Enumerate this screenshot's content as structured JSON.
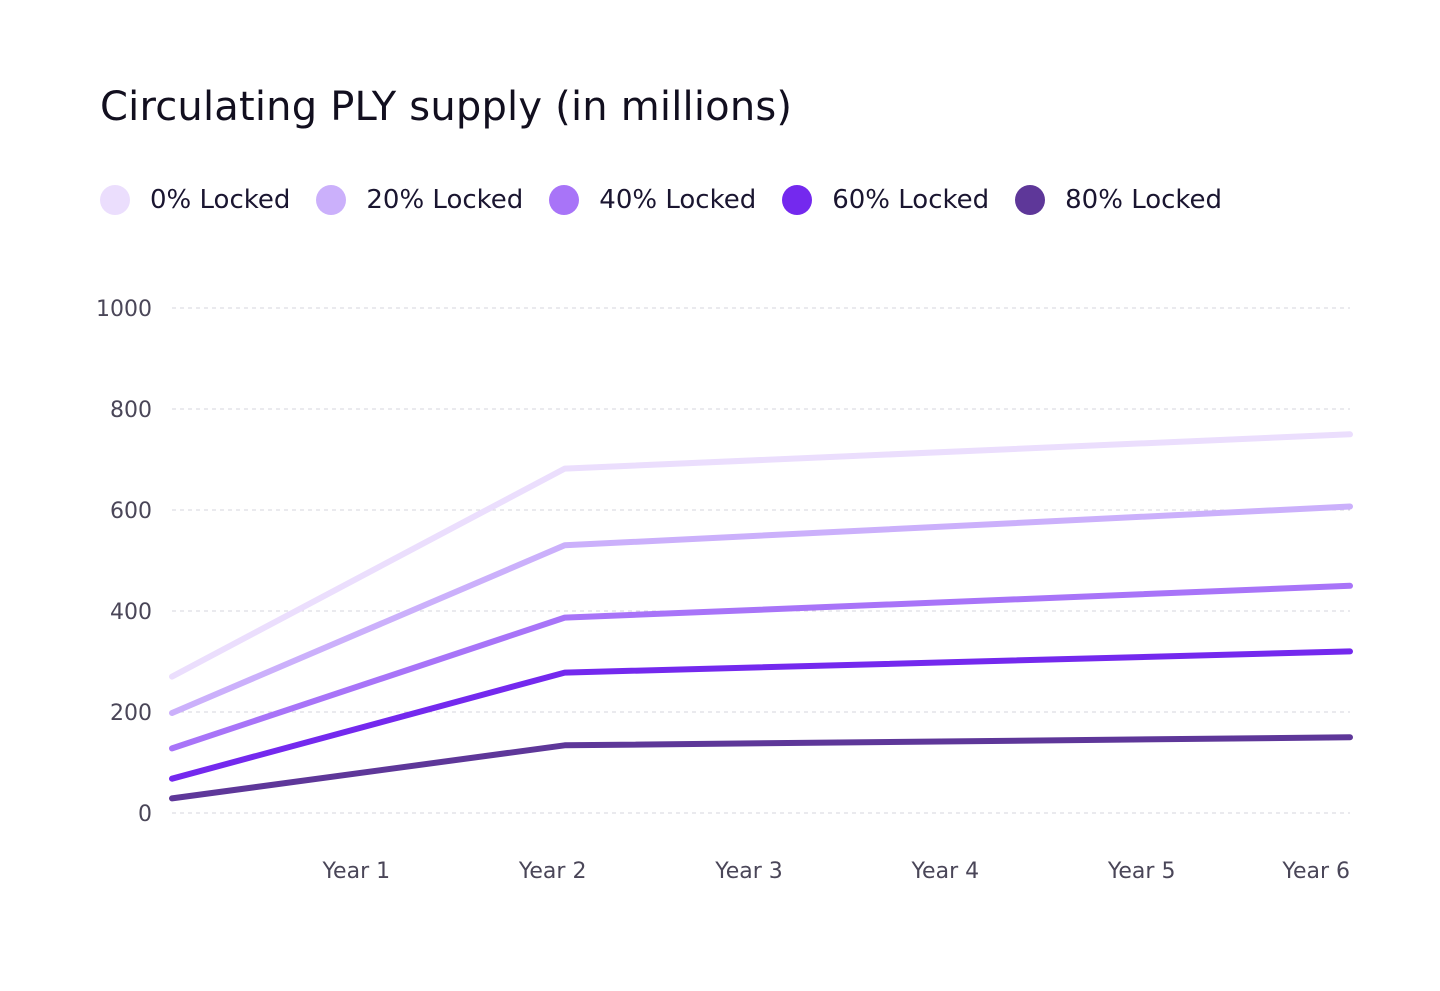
{
  "chart_data": {
    "type": "line",
    "title": "Circulating PLY supply (in millions)",
    "xlabel": "",
    "ylabel": "",
    "x": [
      "",
      "Year 1",
      "Year 2",
      "Year 3",
      "Year 4",
      "Year 5",
      "Year 6"
    ],
    "x_tick_labels": [
      "Year 1",
      "Year 2",
      "Year 3",
      "Year 4",
      "Year 5",
      "Year 6"
    ],
    "ylim": [
      0,
      1000
    ],
    "y_ticks": [
      0,
      200,
      400,
      600,
      800,
      1000
    ],
    "grid": true,
    "legend_position": "top-left",
    "series": [
      {
        "name": "0% Locked",
        "color": "#ebdefd",
        "points": [
          [
            0,
            270
          ],
          [
            2,
            682
          ],
          [
            6,
            750
          ]
        ]
      },
      {
        "name": "20% Locked",
        "color": "#cbb0fb",
        "points": [
          [
            0,
            198
          ],
          [
            2,
            530
          ],
          [
            6,
            607
          ]
        ]
      },
      {
        "name": "40% Locked",
        "color": "#a874f8",
        "points": [
          [
            0,
            128
          ],
          [
            2,
            387
          ],
          [
            6,
            450
          ]
        ]
      },
      {
        "name": "60% Locked",
        "color": "#7429ee",
        "points": [
          [
            0,
            68
          ],
          [
            2,
            278
          ],
          [
            6,
            320
          ]
        ]
      },
      {
        "name": "80% Locked",
        "color": "#5e3799",
        "points": [
          [
            0,
            29
          ],
          [
            2,
            134
          ],
          [
            6,
            150
          ]
        ]
      }
    ]
  }
}
